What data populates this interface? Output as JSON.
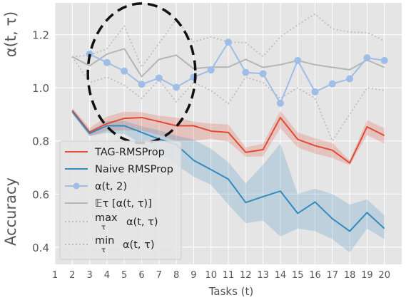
{
  "chart_data": {
    "type": "line",
    "xlabel": "Tasks (t)",
    "ylabel_top": "α(t, τ)",
    "ylabel_bottom": "Accuracy",
    "x_ticks": [
      1,
      2,
      3,
      4,
      5,
      6,
      7,
      8,
      9,
      10,
      11,
      12,
      13,
      14,
      15,
      16,
      17,
      18,
      19,
      20
    ],
    "xlim": [
      1,
      21
    ],
    "y_ticks": [
      0.4,
      0.6,
      0.8,
      1.0,
      1.2
    ],
    "y_tick_labels": [
      "0.4",
      "0.6",
      "0.8",
      "1.0",
      "1.2"
    ],
    "ylim": [
      0.335,
      1.32
    ],
    "grid": true,
    "legend_position": "lower-left",
    "annotation": "dashed ellipse around tasks 3–9 of α(t, 2)",
    "series": [
      {
        "name": "TAG-RMSProp",
        "color": "#e24a33",
        "x": [
          2,
          3,
          4,
          5,
          6,
          7,
          8,
          9,
          10,
          11,
          12,
          13,
          14,
          15,
          16,
          17,
          18,
          19,
          20
        ],
        "values": [
          0.915,
          0.833,
          0.865,
          0.885,
          0.888,
          0.873,
          0.857,
          0.857,
          0.837,
          0.832,
          0.757,
          0.767,
          0.888,
          0.806,
          0.782,
          0.765,
          0.717,
          0.853,
          0.82
        ],
        "band_lower": [
          0.905,
          0.818,
          0.838,
          0.84,
          0.838,
          0.822,
          0.8,
          0.8,
          0.808,
          0.797,
          0.74,
          0.742,
          0.848,
          0.776,
          0.752,
          0.736,
          0.708,
          0.822,
          0.79
        ],
        "band_upper": [
          0.925,
          0.848,
          0.892,
          0.91,
          0.908,
          0.895,
          0.888,
          0.872,
          0.865,
          0.862,
          0.775,
          0.79,
          0.913,
          0.832,
          0.81,
          0.792,
          0.727,
          0.878,
          0.848
        ]
      },
      {
        "name": "Naive RMSProp",
        "color": "#348abd",
        "x": [
          2,
          3,
          4,
          5,
          6,
          7,
          8,
          9,
          10,
          11,
          12,
          13,
          14,
          15,
          16,
          17,
          18,
          19,
          20
        ],
        "values": [
          0.91,
          0.828,
          0.857,
          0.857,
          0.832,
          0.807,
          0.786,
          0.727,
          0.692,
          0.656,
          0.568,
          0.59,
          0.611,
          0.527,
          0.57,
          0.507,
          0.46,
          0.53,
          0.47
        ],
        "band_lower": [
          0.902,
          0.818,
          0.83,
          0.826,
          0.79,
          0.76,
          0.71,
          0.665,
          0.635,
          0.56,
          0.49,
          0.5,
          0.44,
          0.47,
          0.46,
          0.43,
          0.38,
          0.47,
          0.43
        ],
        "band_upper": [
          0.918,
          0.838,
          0.874,
          0.875,
          0.855,
          0.84,
          0.82,
          0.805,
          0.77,
          0.72,
          0.64,
          0.71,
          0.79,
          0.6,
          0.62,
          0.6,
          0.56,
          0.58,
          0.52
        ]
      },
      {
        "name": "α(t, 2)",
        "color": "#9fbde6",
        "marker": "circle",
        "x": [
          3,
          4,
          5,
          6,
          7,
          8,
          9,
          10,
          11,
          12,
          13,
          14,
          15,
          16,
          17,
          18,
          19,
          20
        ],
        "values": [
          1.127,
          1.095,
          1.063,
          1.013,
          1.037,
          1.002,
          1.04,
          1.067,
          1.172,
          1.058,
          1.053,
          0.942,
          1.103,
          0.985,
          1.015,
          1.034,
          1.113,
          1.103
        ]
      },
      {
        "name": "𝔼τ  [α(t, τ)]",
        "color": "#b5b5b5",
        "x": [
          2,
          3,
          4,
          5,
          6,
          7,
          8,
          9,
          10,
          11,
          12,
          13,
          14,
          15,
          16,
          17,
          18,
          19,
          20
        ],
        "values": [
          1.117,
          1.083,
          1.127,
          1.147,
          1.042,
          1.107,
          1.123,
          1.072,
          1.078,
          1.078,
          1.107,
          1.077,
          1.087,
          1.103,
          1.087,
          1.077,
          1.068,
          1.105,
          1.077
        ]
      },
      {
        "name": "max_τ  α(t, τ)",
        "color": "#bdbdbd",
        "dash": "dotted",
        "x": [
          2,
          3,
          4,
          5,
          6,
          7,
          8,
          9,
          10,
          11,
          12,
          13,
          14,
          15,
          16,
          17,
          18,
          19,
          20
        ],
        "values": [
          1.117,
          1.123,
          1.147,
          1.233,
          1.078,
          1.167,
          1.258,
          1.173,
          1.192,
          1.172,
          1.17,
          1.118,
          1.192,
          1.237,
          1.278,
          1.222,
          1.21,
          1.208,
          1.177
        ]
      },
      {
        "name": "min_τ  α(t, τ)",
        "color": "#bdbdbd",
        "dash": "dotted",
        "x": [
          2,
          3,
          4,
          5,
          6,
          7,
          8,
          9,
          10,
          11,
          12,
          13,
          14,
          15,
          16,
          17,
          18,
          19,
          20
        ],
        "values": [
          1.117,
          1.02,
          1.04,
          1.01,
          0.96,
          1.03,
          0.947,
          1.02,
          0.99,
          0.94,
          1.04,
          1.02,
          0.96,
          1.0,
          0.96,
          0.8,
          0.9,
          1.0,
          0.99
        ]
      }
    ]
  },
  "legend": {
    "items": [
      {
        "label": "TAG-RMSProp"
      },
      {
        "label": "Naive RMSProp"
      },
      {
        "label": "α(t, 2)"
      },
      {
        "label": "𝔼τ  [α(t, τ)]"
      },
      {
        "label": "max"
      },
      {
        "label": "min"
      }
    ],
    "sub_tau": "τ",
    "alpha_tt": "α(t, τ)"
  }
}
